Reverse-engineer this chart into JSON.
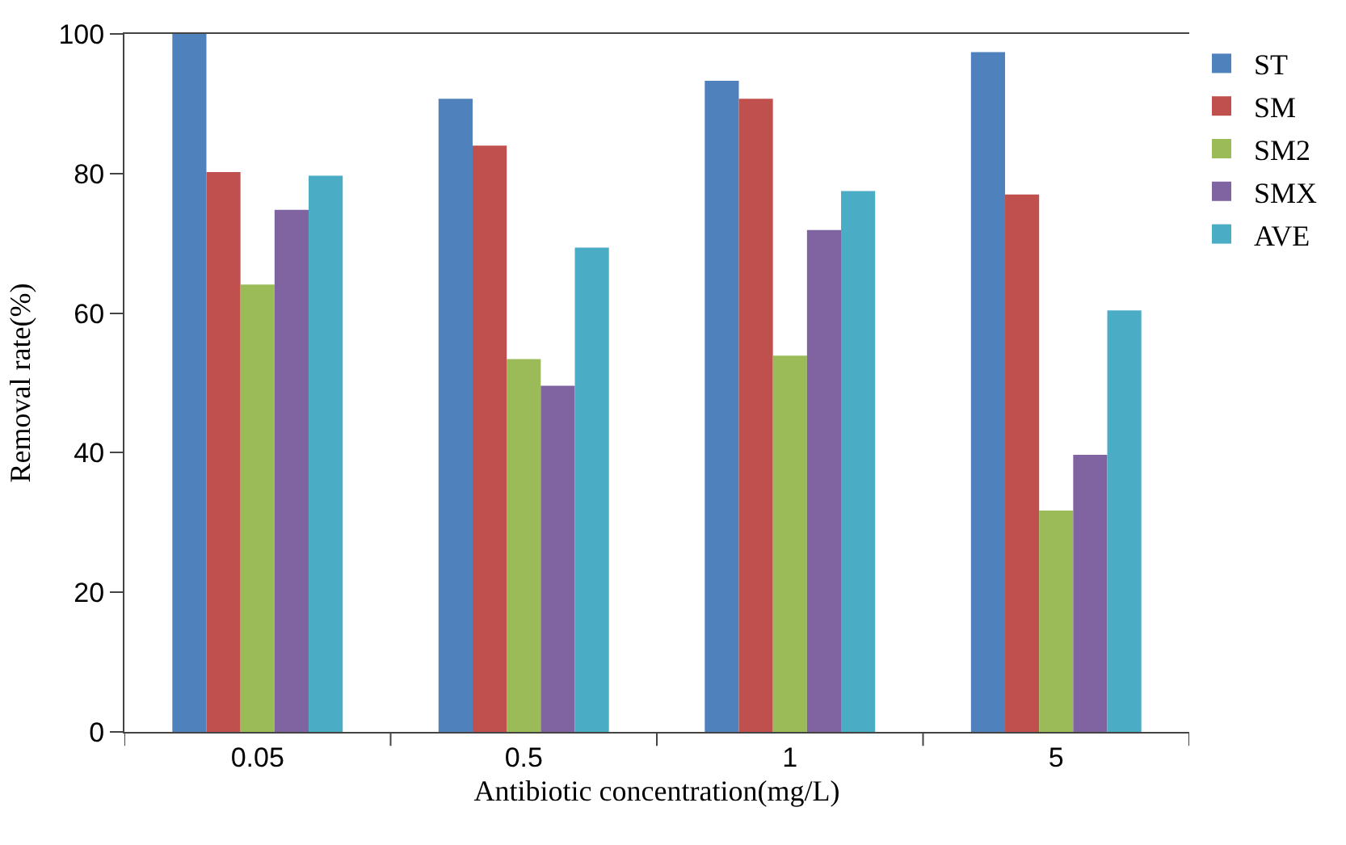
{
  "chart_data": {
    "type": "bar",
    "xlabel": "Antibiotic concentration(mg/L)",
    "ylabel": "Removal rate(%)",
    "categories": [
      "0.05",
      "0.5",
      "1",
      "5"
    ],
    "series": [
      {
        "name": "ST",
        "color": "#4f81bd",
        "values": [
          100,
          90.7,
          93.3,
          97.4
        ]
      },
      {
        "name": "SM",
        "color": "#c0504d",
        "values": [
          80.2,
          84.0,
          90.7,
          77.0
        ]
      },
      {
        "name": "SM2",
        "color": "#9bbb59",
        "values": [
          64.1,
          53.4,
          53.9,
          31.7
        ]
      },
      {
        "name": "SMX",
        "color": "#8064a2",
        "values": [
          74.8,
          49.6,
          71.9,
          39.7
        ]
      },
      {
        "name": "AVE",
        "color": "#4bacc6",
        "values": [
          79.7,
          69.4,
          77.5,
          60.4
        ]
      }
    ],
    "ylim": [
      0,
      100
    ],
    "yticks": [
      0,
      20,
      40,
      60,
      80,
      100
    ],
    "legend": "top right"
  }
}
